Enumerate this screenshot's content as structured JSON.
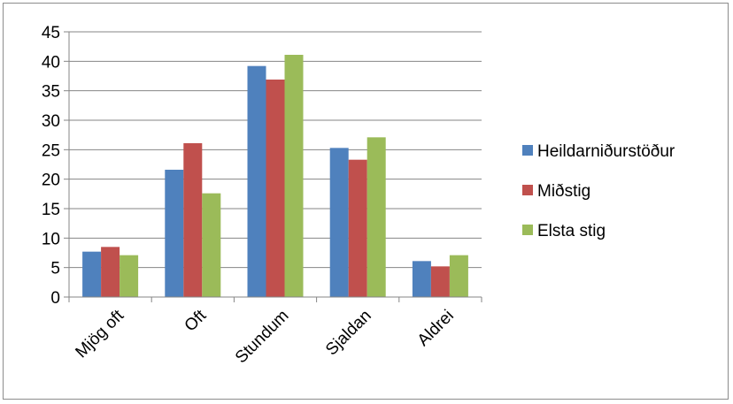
{
  "chart_data": {
    "type": "bar",
    "categories": [
      "Mjög oft",
      "Oft",
      "Stundum",
      "Sjaldan",
      "Aldrei"
    ],
    "series": [
      {
        "name": "Heildarniðurstöður",
        "color": "#4f81bd",
        "values": [
          7.7,
          21.6,
          39.2,
          25.3,
          6.1
        ]
      },
      {
        "name": "Miðstig",
        "color": "#c0504d",
        "values": [
          8.5,
          26.1,
          36.9,
          23.3,
          5.2
        ]
      },
      {
        "name": "Elsta stig",
        "color": "#9bbb59",
        "values": [
          7.1,
          17.6,
          41.1,
          27.1,
          7.1
        ]
      }
    ],
    "y_ticks": [
      "0",
      "5",
      "10",
      "15",
      "20",
      "25",
      "30",
      "35",
      "40",
      "45"
    ],
    "ylim": [
      0,
      45
    ],
    "grid": true,
    "legend_position": "right"
  }
}
